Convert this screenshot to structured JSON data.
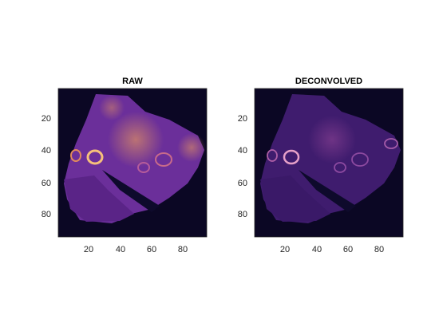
{
  "figure": {
    "panels": [
      {
        "title": "RAW",
        "x_ticks": [
          "20",
          "40",
          "60",
          "80"
        ],
        "y_ticks": [
          "20",
          "40",
          "60",
          "80"
        ],
        "x_range": [
          0.5,
          95.5
        ],
        "y_range": [
          0.5,
          95.5
        ],
        "colormap": "magma-like (black → purple → orange)",
        "brightness": "high"
      },
      {
        "title": "DECONVOLVED",
        "x_ticks": [
          "20",
          "40",
          "60",
          "80"
        ],
        "y_ticks": [
          "20",
          "40",
          "60",
          "80"
        ],
        "x_range": [
          0.5,
          95.5
        ],
        "y_range": [
          0.5,
          95.5
        ],
        "colormap": "magma-like (black → purple → orange)",
        "brightness": "lower"
      }
    ],
    "colors": {
      "background": "#ffffff",
      "image_dark": "#0b0724",
      "image_mid": "#3a1c6e",
      "tissue": "#6b2f9a",
      "bright_spot": "#f2a05a",
      "axis": "#262626"
    }
  }
}
